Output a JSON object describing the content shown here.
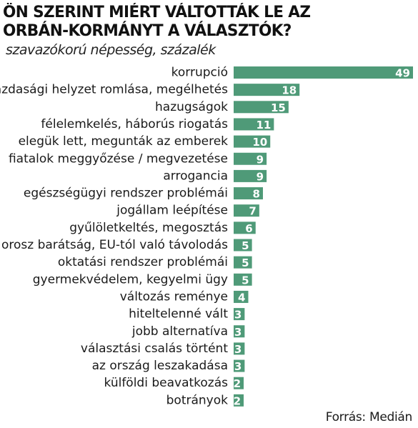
{
  "chart_data": {
    "type": "bar",
    "orientation": "horizontal",
    "title_line1": "ÖN SZERINT MIÉRT VÁLTOTTÁK LE AZ",
    "title_line2": "ORBÁN-KORMÁNYT A VÁLASZTÓK?",
    "subtitle": "szavazókorú népesség, százalék",
    "source": "Forrás: Medián",
    "bar_color": "#4f9a78",
    "value_label_color": "#ffffff",
    "data_labels": true,
    "grid": false,
    "categories": [
      "korrupció",
      "gazdasági helyzet romlása, megélhetés",
      "hazugságok",
      "félelemkelés, háborús riogatás",
      "elegük lett, megunták az emberek",
      "fiatalok meggyőzése / megvezetése",
      "arrogancia",
      "egészségügyi rendszer problémái",
      "jogállam leépítése",
      "gyűlöletkeltés, megosztás",
      "orosz barátság, EU-tól való távolodás",
      "oktatási rendszer problémái",
      "gyermekvédelem, kegyelmi ügy",
      "változás reménye",
      "hiteltelenné vált",
      "jobb alternatíva",
      "választási csalás történt",
      "az ország leszakadása",
      "külföldi beavatkozás",
      "botrányok"
    ],
    "values": [
      49,
      18,
      15,
      11,
      10,
      9,
      9,
      8,
      7,
      6,
      5,
      5,
      5,
      4,
      3,
      3,
      3,
      3,
      2,
      2
    ]
  }
}
